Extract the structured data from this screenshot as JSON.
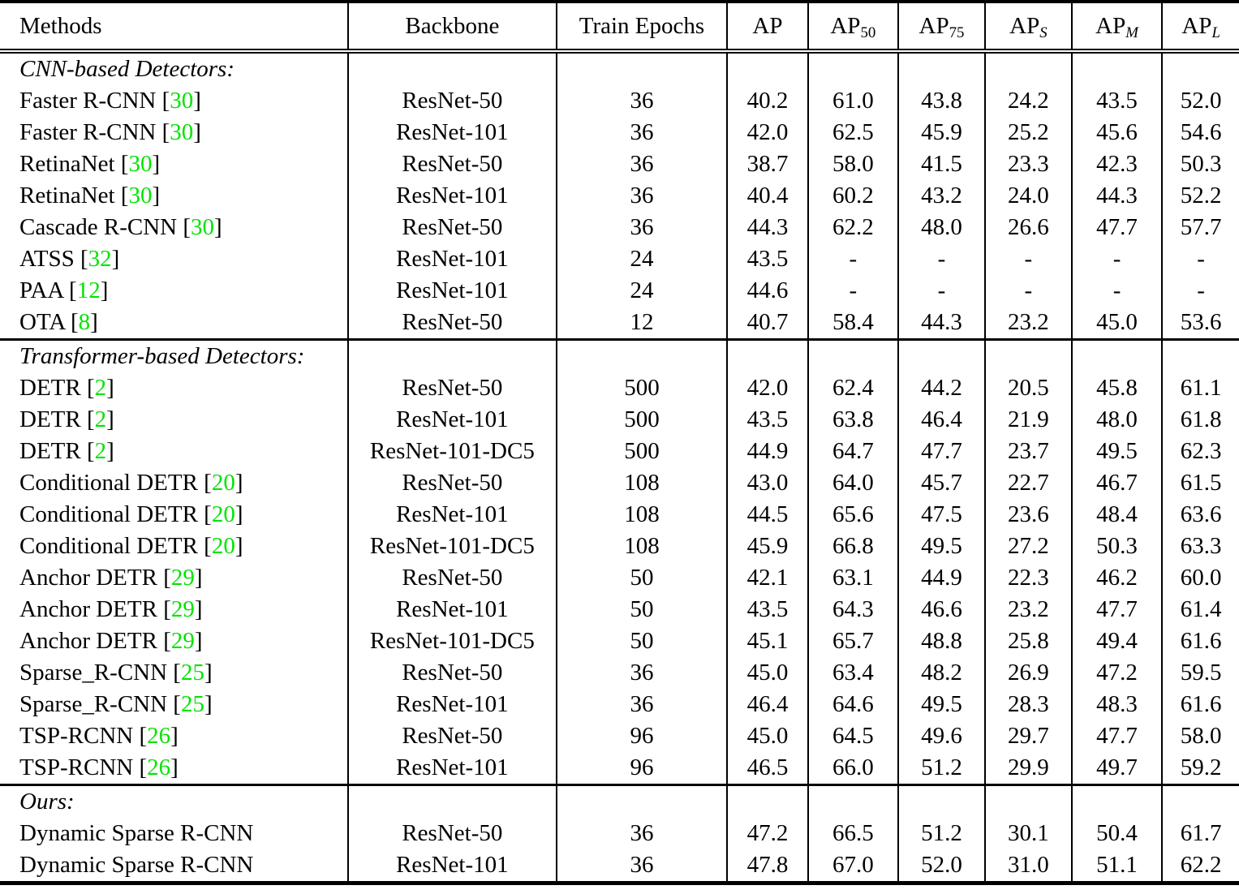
{
  "table": {
    "citation_prefix": " [",
    "citation_suffix": "]",
    "citation_color": "#00e400",
    "text_color": "#000000",
    "background_color": "#ffffff",
    "headers": [
      {
        "text": "Methods",
        "align": "left"
      },
      {
        "text": "Backbone"
      },
      {
        "text": "Train Epochs"
      },
      {
        "text": "AP"
      },
      {
        "text": "AP",
        "sub": "50",
        "italicSub": false
      },
      {
        "text": "AP",
        "sub": "75",
        "italicSub": false
      },
      {
        "text": "AP",
        "sub": "S",
        "italicSub": true
      },
      {
        "text": "AP",
        "sub": "M",
        "italicSub": true
      },
      {
        "text": "AP",
        "sub": "L",
        "italicSub": true
      }
    ],
    "metric_keys": [
      "ap",
      "ap50",
      "ap75",
      "aps",
      "apm",
      "apl"
    ],
    "sections": [
      {
        "label": "CNN-based Detectors:",
        "rows": [
          {
            "method": "Faster R-CNN",
            "cite": "30",
            "backbone": "ResNet-50",
            "epochs": "36",
            "values": [
              "40.2",
              "61.0",
              "43.8",
              "24.2",
              "43.5",
              "52.0"
            ]
          },
          {
            "method": "Faster R-CNN",
            "cite": "30",
            "backbone": "ResNet-101",
            "epochs": "36",
            "values": [
              "42.0",
              "62.5",
              "45.9",
              "25.2",
              "45.6",
              "54.6"
            ]
          },
          {
            "method": "RetinaNet",
            "cite": "30",
            "backbone": "ResNet-50",
            "epochs": "36",
            "values": [
              "38.7",
              "58.0",
              "41.5",
              "23.3",
              "42.3",
              "50.3"
            ]
          },
          {
            "method": "RetinaNet",
            "cite": "30",
            "backbone": "ResNet-101",
            "epochs": "36",
            "values": [
              "40.4",
              "60.2",
              "43.2",
              "24.0",
              "44.3",
              "52.2"
            ]
          },
          {
            "method": "Cascade R-CNN",
            "cite": "30",
            "backbone": "ResNet-50",
            "epochs": "36",
            "values": [
              "44.3",
              "62.2",
              "48.0",
              "26.6",
              "47.7",
              "57.7"
            ]
          },
          {
            "method": "ATSS",
            "cite": "32",
            "backbone": "ResNet-101",
            "epochs": "24",
            "values": [
              "43.5",
              "-",
              "-",
              "-",
              "-",
              "-"
            ]
          },
          {
            "method": "PAA",
            "cite": "12",
            "backbone": "ResNet-101",
            "epochs": "24",
            "values": [
              "44.6",
              "-",
              "-",
              "-",
              "-",
              "-"
            ]
          },
          {
            "method": "OTA",
            "cite": "8",
            "backbone": "ResNet-50",
            "epochs": "12",
            "values": [
              "40.7",
              "58.4",
              "44.3",
              "23.2",
              "45.0",
              "53.6"
            ]
          }
        ]
      },
      {
        "label": "Transformer-based Detectors:",
        "rows": [
          {
            "method": "DETR",
            "cite": "2",
            "backbone": "ResNet-50",
            "epochs": "500",
            "values": [
              "42.0",
              "62.4",
              "44.2",
              "20.5",
              "45.8",
              "61.1"
            ]
          },
          {
            "method": "DETR",
            "cite": "2",
            "backbone": "ResNet-101",
            "epochs": "500",
            "values": [
              "43.5",
              "63.8",
              "46.4",
              "21.9",
              "48.0",
              "61.8"
            ]
          },
          {
            "method": "DETR",
            "cite": "2",
            "backbone": "ResNet-101-DC5",
            "epochs": "500",
            "values": [
              "44.9",
              "64.7",
              "47.7",
              "23.7",
              "49.5",
              "62.3"
            ]
          },
          {
            "method": "Conditional DETR",
            "cite": "20",
            "backbone": "ResNet-50",
            "epochs": "108",
            "values": [
              "43.0",
              "64.0",
              "45.7",
              "22.7",
              "46.7",
              "61.5"
            ]
          },
          {
            "method": "Conditional DETR",
            "cite": "20",
            "backbone": "ResNet-101",
            "epochs": "108",
            "values": [
              "44.5",
              "65.6",
              "47.5",
              "23.6",
              "48.4",
              "63.6"
            ]
          },
          {
            "method": "Conditional DETR",
            "cite": "20",
            "backbone": "ResNet-101-DC5",
            "epochs": "108",
            "values": [
              "45.9",
              "66.8",
              "49.5",
              "27.2",
              "50.3",
              "63.3"
            ]
          },
          {
            "method": "Anchor DETR",
            "cite": "29",
            "backbone": "ResNet-50",
            "epochs": "50",
            "values": [
              "42.1",
              "63.1",
              "44.9",
              "22.3",
              "46.2",
              "60.0"
            ]
          },
          {
            "method": "Anchor DETR",
            "cite": "29",
            "backbone": "ResNet-101",
            "epochs": "50",
            "values": [
              "43.5",
              "64.3",
              "46.6",
              "23.2",
              "47.7",
              "61.4"
            ]
          },
          {
            "method": "Anchor DETR",
            "cite": "29",
            "backbone": "ResNet-101-DC5",
            "epochs": "50",
            "values": [
              "45.1",
              "65.7",
              "48.8",
              "25.8",
              "49.4",
              "61.6"
            ]
          },
          {
            "method": "Sparse_R-CNN",
            "cite": "25",
            "backbone": "ResNet-50",
            "epochs": "36",
            "values": [
              "45.0",
              "63.4",
              "48.2",
              "26.9",
              "47.2",
              "59.5"
            ]
          },
          {
            "method": "Sparse_R-CNN",
            "cite": "25",
            "backbone": "ResNet-101",
            "epochs": "36",
            "values": [
              "46.4",
              "64.6",
              "49.5",
              "28.3",
              "48.3",
              "61.6"
            ]
          },
          {
            "method": "TSP-RCNN",
            "cite": "26",
            "backbone": "ResNet-50",
            "epochs": "96",
            "values": [
              "45.0",
              "64.5",
              "49.6",
              "29.7",
              "47.7",
              "58.0"
            ]
          },
          {
            "method": "TSP-RCNN",
            "cite": "26",
            "backbone": "ResNet-101",
            "epochs": "96",
            "values": [
              "46.5",
              "66.0",
              "51.2",
              "29.9",
              "49.7",
              "59.2"
            ]
          }
        ]
      },
      {
        "label": "Ours:",
        "rows": [
          {
            "method": "Dynamic Sparse R-CNN",
            "cite": null,
            "backbone": "ResNet-50",
            "epochs": "36",
            "values": [
              "47.2",
              "66.5",
              "51.2",
              "30.1",
              "50.4",
              "61.7"
            ]
          },
          {
            "method": "Dynamic Sparse R-CNN",
            "cite": null,
            "backbone": "ResNet-101",
            "epochs": "36",
            "values": [
              "47.8",
              "67.0",
              "52.0",
              "31.0",
              "51.1",
              "62.2"
            ]
          }
        ]
      }
    ]
  }
}
